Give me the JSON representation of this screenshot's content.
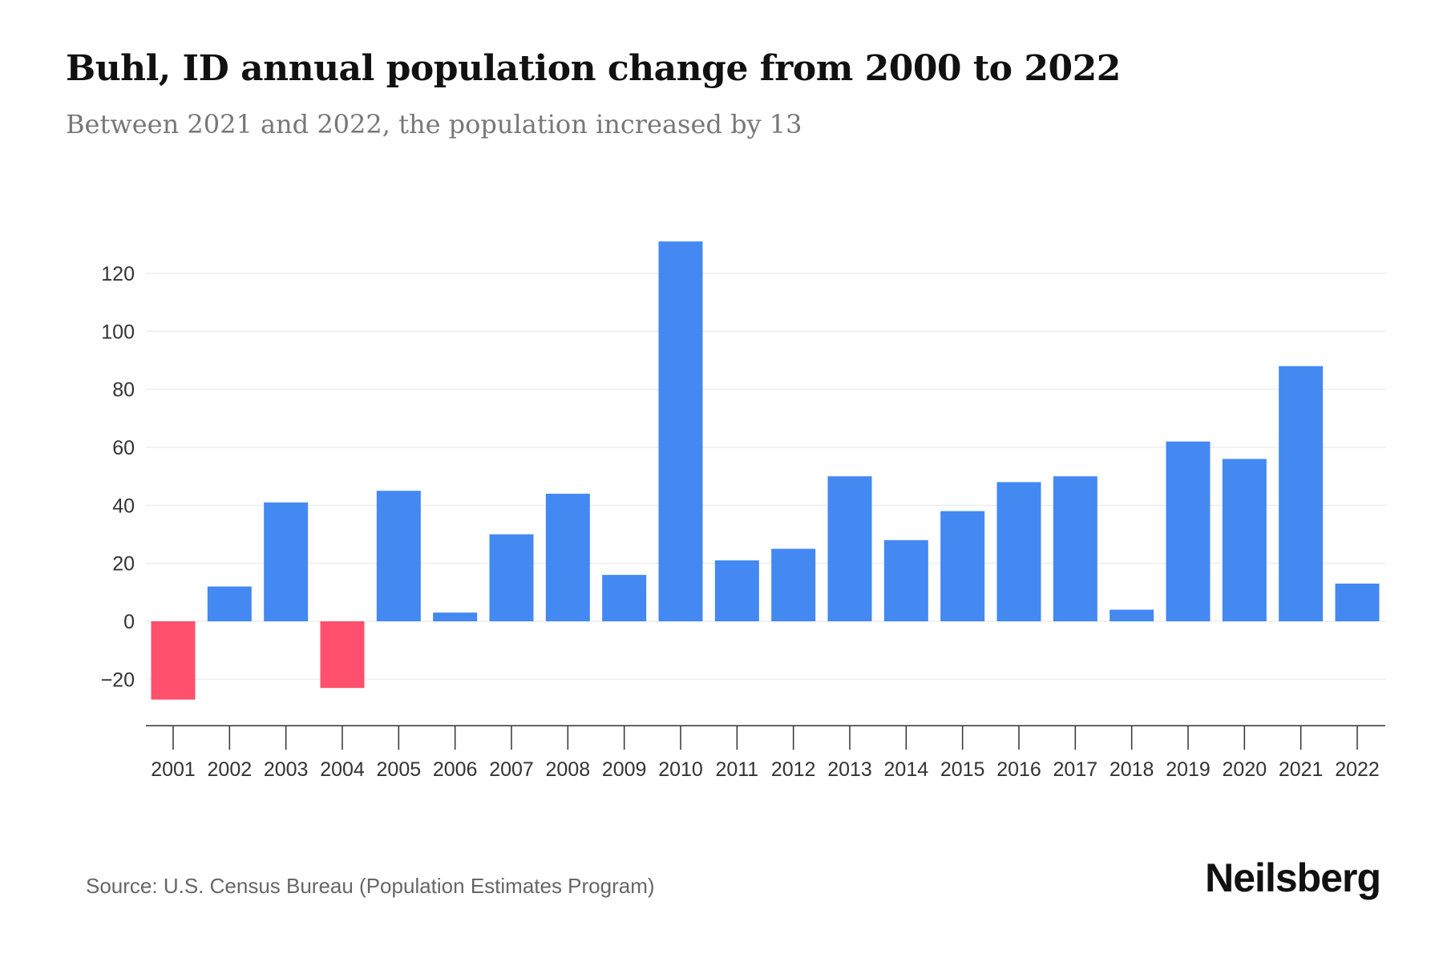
{
  "title": "Buhl, ID annual population change from 2000 to 2022",
  "subtitle": "Between 2021 and 2022, the population increased by 13",
  "source": "Source: U.S. Census Bureau (Population Estimates Program)",
  "logo": "Neilsberg",
  "colors": {
    "positive": "#4488f2",
    "negative": "#ff506e"
  },
  "chart_data": {
    "type": "bar",
    "title": "Buhl, ID annual population change from 2000 to 2022",
    "xlabel": "",
    "ylabel": "",
    "categories": [
      "2001",
      "2002",
      "2003",
      "2004",
      "2005",
      "2006",
      "2007",
      "2008",
      "2009",
      "2010",
      "2011",
      "2012",
      "2013",
      "2014",
      "2015",
      "2016",
      "2017",
      "2018",
      "2019",
      "2020",
      "2021",
      "2022"
    ],
    "values": [
      -27,
      12,
      41,
      -23,
      45,
      3,
      30,
      44,
      16,
      131,
      21,
      25,
      50,
      28,
      38,
      48,
      50,
      4,
      62,
      56,
      88,
      13
    ],
    "yticks": [
      -20,
      0,
      20,
      40,
      60,
      80,
      100,
      120
    ],
    "ylim": [
      -36,
      131
    ],
    "grid": true,
    "legend": "none"
  }
}
